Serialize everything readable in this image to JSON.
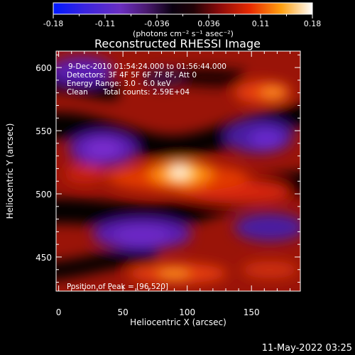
{
  "chart_data": {
    "type": "heatmap",
    "title": "Reconstructed RHESSI Image",
    "xlabel": "Heliocentric X (arcsec)",
    "ylabel": "Heliocentric Y (arcsec)",
    "xlim": [
      -2,
      188
    ],
    "ylim": [
      423,
      613
    ],
    "x_ticks": [
      0,
      50,
      100,
      150
    ],
    "y_ticks": [
      450,
      500,
      550,
      600
    ],
    "colorbar": {
      "range": [
        -0.18,
        0.18
      ],
      "ticks": [
        "-0.18",
        "-0.11",
        "-0.036",
        "0.036",
        "0.11",
        "0.18"
      ],
      "unit_label": "(photons cm⁻² s⁻¹ asec⁻²)",
      "colormap": [
        "#0018ff",
        "#4d2ad0",
        "#7c30b0",
        "#2a0a30",
        "#000000",
        "#3a0608",
        "#b01010",
        "#ff3a00",
        "#ffae10",
        "#ffffff"
      ]
    },
    "annotations": {
      "time_range": "9-Dec-2010 01:54:24.000 to 01:56:44.000",
      "detectors": "Detectors: 3F 4F 5F 6F 7F 8F, Att 0",
      "energy": "Energy Range: 3.0 - 6.0 keV",
      "method": "Clean",
      "counts": "Total counts: 2.59E+04",
      "peak": "Position of Peak = [96,520]"
    },
    "peak": {
      "x": 96,
      "y": 520
    }
  },
  "footer": {
    "timestamp": "11-May-2022 03:25"
  }
}
